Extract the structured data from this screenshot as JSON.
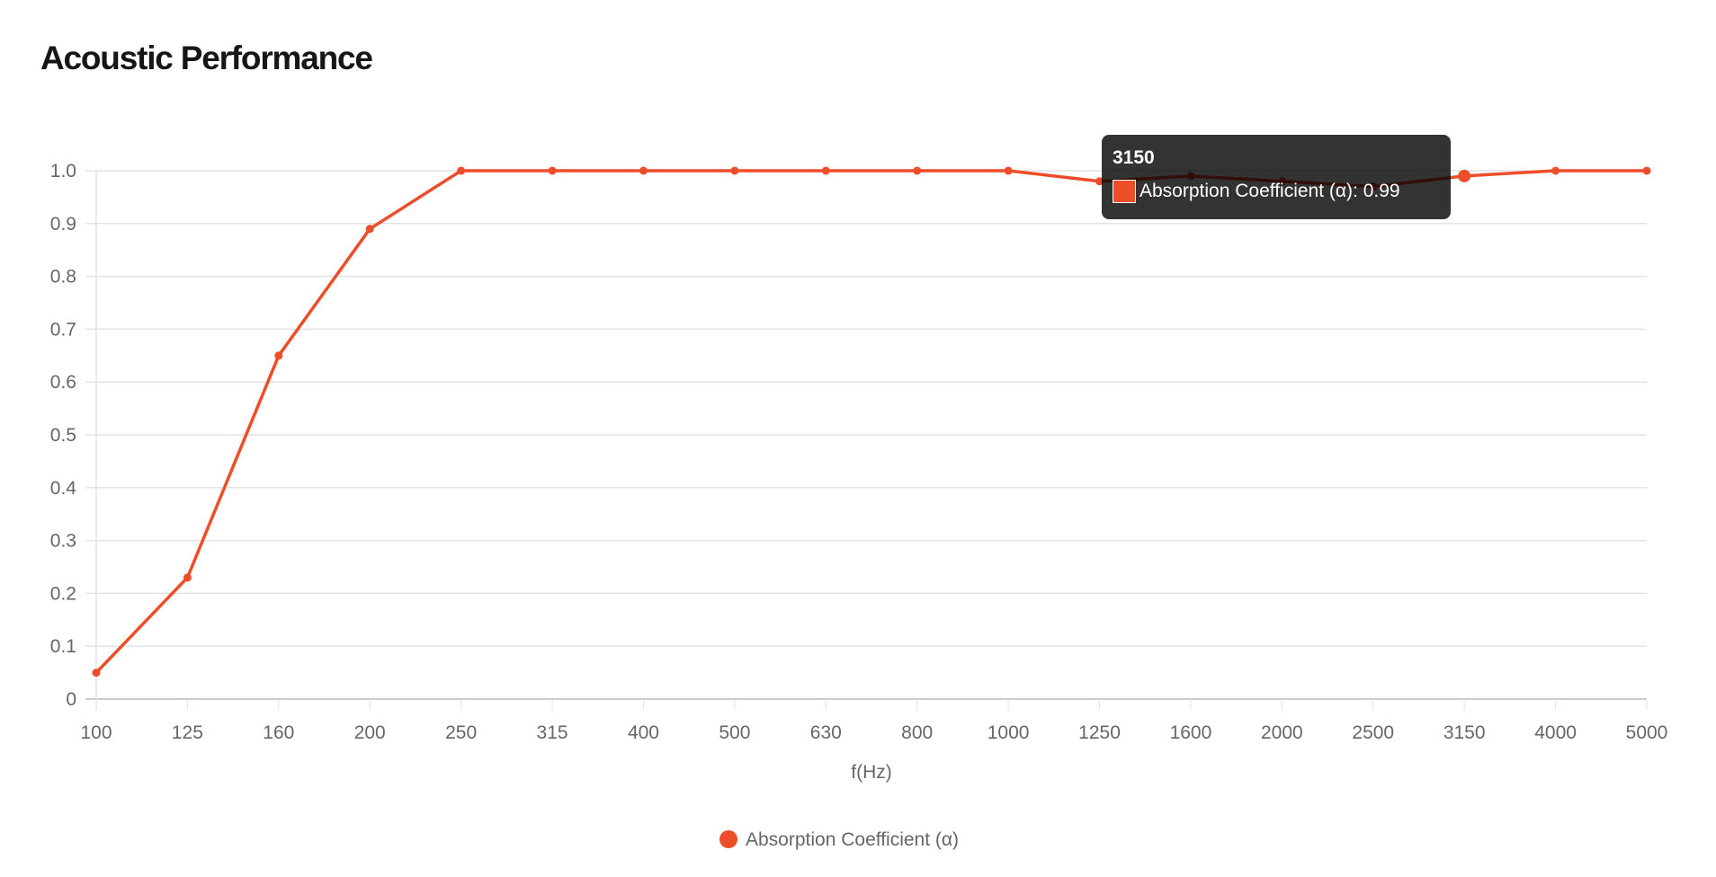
{
  "chart_data": {
    "type": "line",
    "title": "Acoustic Performance",
    "xlabel": "f(Hz)",
    "ylabel": "",
    "categories": [
      "100",
      "125",
      "160",
      "200",
      "250",
      "315",
      "400",
      "500",
      "630",
      "800",
      "1000",
      "1250",
      "1600",
      "2000",
      "2500",
      "3150",
      "4000",
      "5000"
    ],
    "series": [
      {
        "name": "Absorption Coefficient (α)",
        "color": "#ee4d2a",
        "values": [
          0.05,
          0.23,
          0.65,
          0.89,
          1.0,
          1.0,
          1.0,
          1.0,
          1.0,
          1.0,
          1.0,
          0.98,
          0.99,
          0.98,
          0.97,
          0.99,
          1.0,
          1.0
        ]
      }
    ],
    "ylim": [
      0,
      1.0
    ],
    "yticks": [
      "0",
      "0.1",
      "0.2",
      "0.3",
      "0.4",
      "0.5",
      "0.6",
      "0.7",
      "0.8",
      "0.9",
      "1.0"
    ],
    "grid": true,
    "legend": "bottom-center",
    "tooltip": {
      "title": "3150",
      "label": "Absorption Coefficient (α): 0.99",
      "index": 15
    }
  }
}
